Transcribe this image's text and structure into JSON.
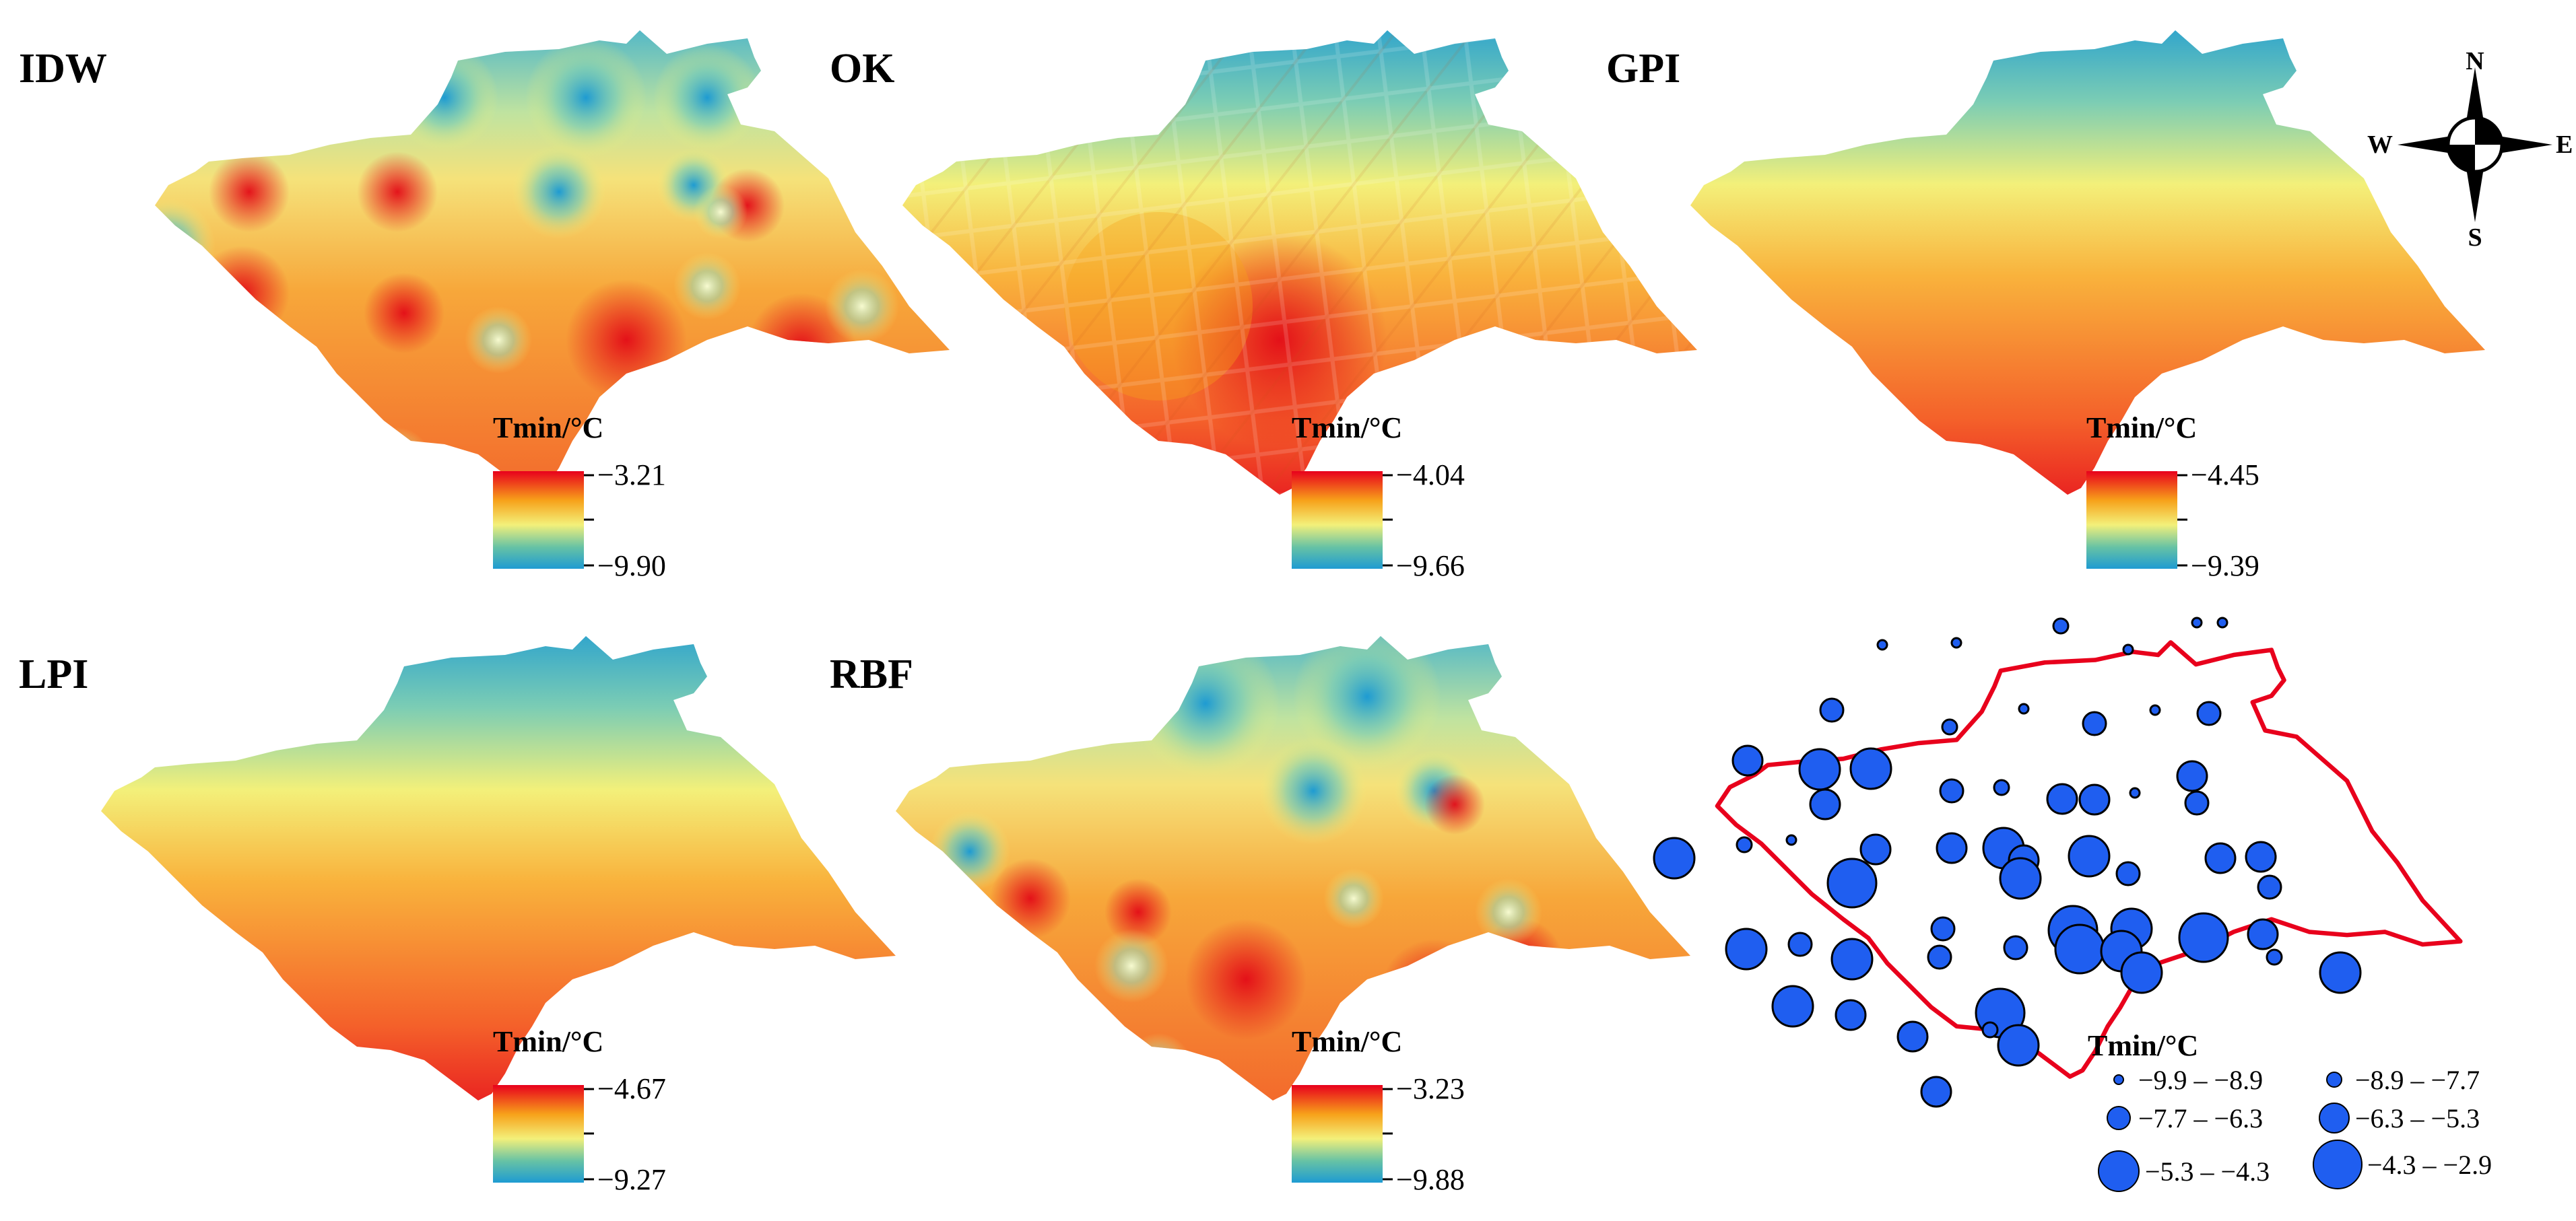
{
  "figure": {
    "panels": [
      {
        "id": "idw",
        "title": "IDW",
        "legend_title": "Tmin/°C",
        "legend_max": "−3.21",
        "legend_min": "−9.90"
      },
      {
        "id": "ok",
        "title": "OK",
        "legend_title": "Tmin/°C",
        "legend_max": "−4.04",
        "legend_min": "−9.66"
      },
      {
        "id": "gpi",
        "title": "GPI",
        "legend_title": "Tmin/°C",
        "legend_max": "−4.45",
        "legend_min": "−9.39"
      },
      {
        "id": "lpi",
        "title": "LPI",
        "legend_title": "Tmin/°C",
        "legend_max": "−4.67",
        "legend_min": "−9.27"
      },
      {
        "id": "rbf",
        "title": "RBF",
        "legend_title": "Tmin/°C",
        "legend_max": "−3.23",
        "legend_min": "−9.88"
      }
    ],
    "compass": {
      "n": "N",
      "s": "S",
      "e": "E",
      "w": "W"
    },
    "points_legend": {
      "title": "Tmin/°C",
      "classes": [
        "−9.9 – −8.9",
        "−8.9 – −7.7",
        "−7.7 – −6.3",
        "−6.3 – −5.3",
        "−5.3 – −4.3",
        "−4.3 – −2.9"
      ]
    },
    "colors": {
      "ramp_hot": "#e8001c",
      "ramp_warm": "#f7a21a",
      "ramp_mid": "#f3f07a",
      "ramp_cool": "#66c2a5",
      "ramp_cold": "#1e9bd2",
      "station": "#1f5ef0",
      "boundary": "#e8001c"
    }
  }
}
